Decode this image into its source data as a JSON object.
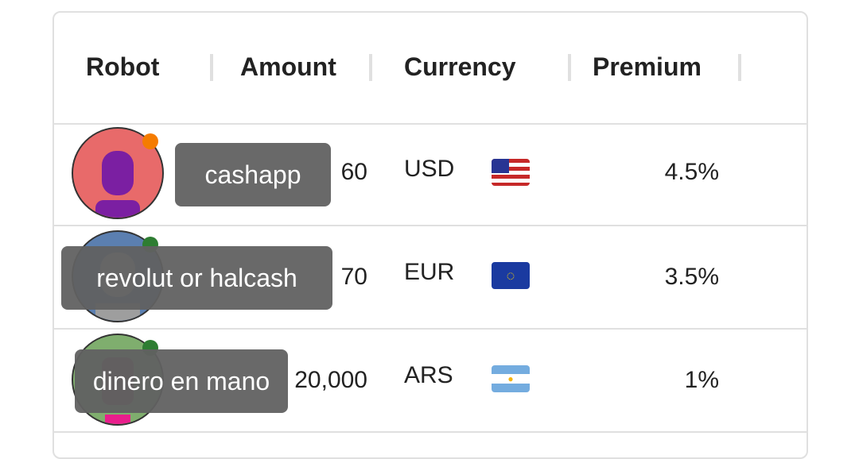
{
  "columns": [
    "Robot",
    "Amount",
    "Currency",
    "Premium"
  ],
  "rows": [
    {
      "amount": "60",
      "currency": "USD",
      "flag": "us-flag",
      "premium": "4.5%",
      "status": "#f57c00",
      "avatar_bg": "#e86a6a",
      "robot_color": "#7b1fa2",
      "payment_tooltip": "cashapp"
    },
    {
      "amount": "70",
      "currency": "EUR",
      "flag": "eu-flag",
      "premium": "3.5%",
      "status": "#2e7d32",
      "avatar_bg": "#5b7fb0",
      "robot_color": "#9e9e9e",
      "payment_tooltip": "revolut or halcash"
    },
    {
      "amount": "20,000",
      "currency": "ARS",
      "flag": "ar-flag",
      "premium": "1%",
      "status": "#2e7d32",
      "avatar_bg": "#7fae6e",
      "robot_color": "#7b3a5a",
      "payment_tooltip": "dinero en mano"
    }
  ]
}
